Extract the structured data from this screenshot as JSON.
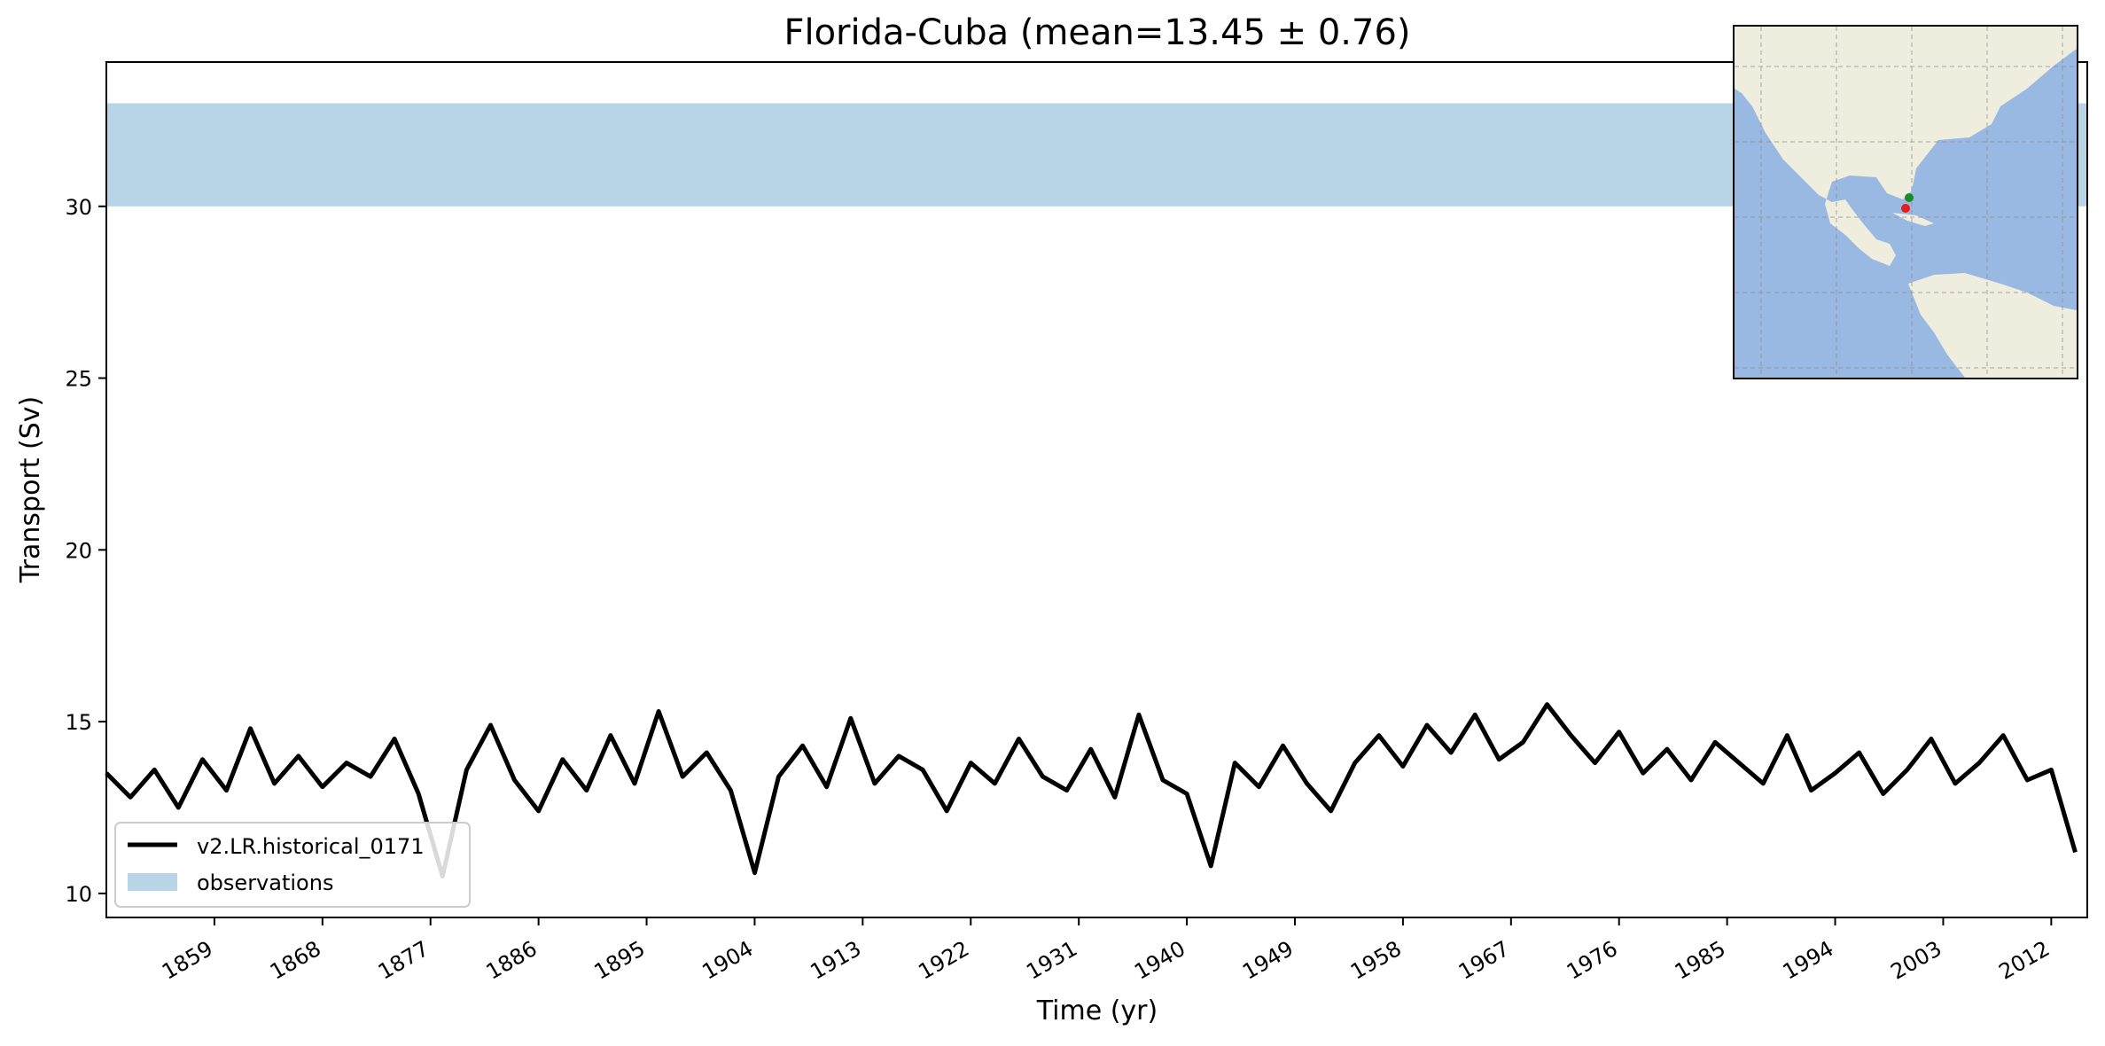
{
  "chart_data": {
    "type": "line",
    "title": "Florida-Cuba (mean=13.45 ± 0.76)",
    "xlabel": "Time (yr)",
    "ylabel": "Transport (Sv)",
    "xlim": [
      1850,
      2015
    ],
    "ylim": [
      9.3,
      34.2
    ],
    "x_ticks": [
      1859,
      1868,
      1877,
      1886,
      1895,
      1904,
      1913,
      1922,
      1931,
      1940,
      1949,
      1958,
      1967,
      1976,
      1985,
      1994,
      2003,
      2012
    ],
    "y_ticks": [
      10,
      15,
      20,
      25,
      30
    ],
    "grid": false,
    "legend_position": "lower-left",
    "series": [
      {
        "name": "v2.LR.historical_0171",
        "color": "#000000",
        "x": [
          1850,
          1852,
          1854,
          1856,
          1858,
          1860,
          1862,
          1864,
          1866,
          1868,
          1870,
          1872,
          1874,
          1876,
          1878,
          1880,
          1882,
          1884,
          1886,
          1888,
          1890,
          1892,
          1894,
          1896,
          1898,
          1900,
          1902,
          1904,
          1906,
          1908,
          1910,
          1912,
          1914,
          1916,
          1918,
          1920,
          1922,
          1924,
          1926,
          1928,
          1930,
          1932,
          1934,
          1936,
          1938,
          1940,
          1942,
          1944,
          1946,
          1948,
          1950,
          1952,
          1954,
          1956,
          1958,
          1960,
          1962,
          1964,
          1966,
          1968,
          1970,
          1972,
          1974,
          1976,
          1978,
          1980,
          1982,
          1984,
          1986,
          1988,
          1990,
          1992,
          1994,
          1996,
          1998,
          2000,
          2002,
          2004,
          2006,
          2008,
          2010,
          2012,
          2014
        ],
        "y": [
          13.5,
          12.8,
          13.6,
          12.5,
          13.9,
          13.0,
          14.8,
          13.2,
          14.0,
          13.1,
          13.8,
          13.4,
          14.5,
          12.9,
          10.5,
          13.6,
          14.9,
          13.3,
          12.4,
          13.9,
          13.0,
          14.6,
          13.2,
          15.3,
          13.4,
          14.1,
          13.0,
          10.6,
          13.4,
          14.3,
          13.1,
          15.1,
          13.2,
          14.0,
          13.6,
          12.4,
          13.8,
          13.2,
          14.5,
          13.4,
          13.0,
          14.2,
          12.8,
          15.2,
          13.3,
          12.9,
          10.8,
          13.8,
          13.1,
          14.3,
          13.2,
          12.4,
          13.8,
          14.6,
          13.7,
          14.9,
          14.1,
          15.2,
          13.9,
          14.4,
          15.5,
          14.6,
          13.8,
          14.7,
          13.5,
          14.2,
          13.3,
          14.4,
          13.8,
          13.2,
          14.6,
          13.0,
          13.5,
          14.1,
          12.9,
          13.6,
          14.5,
          13.2,
          13.8,
          14.6,
          13.3,
          13.6,
          11.2
        ]
      }
    ],
    "observations": {
      "name": "observations",
      "low": 30.0,
      "high": 33.0,
      "color": "#b8d4e7"
    },
    "inset_map": {
      "land_color": "#efedde",
      "ocean_color": "#99b9e3",
      "markers": [
        {
          "name": "green-point",
          "color": "#1a8a2a"
        },
        {
          "name": "red-point",
          "color": "#e51c1c"
        }
      ]
    }
  }
}
